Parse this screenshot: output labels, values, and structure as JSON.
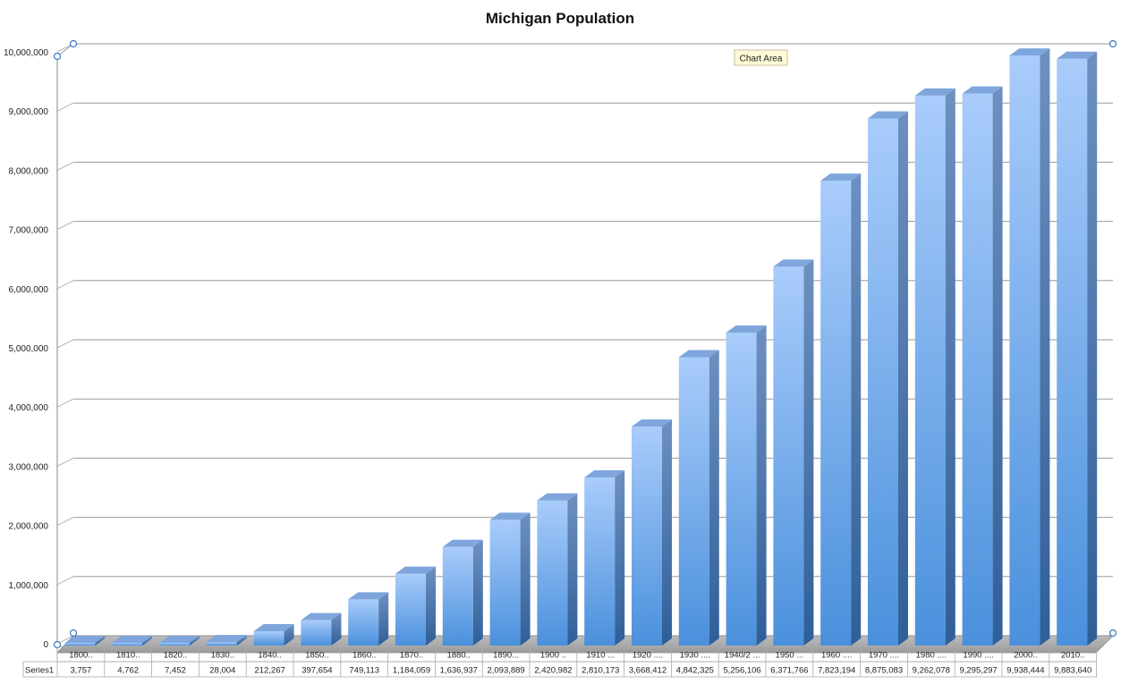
{
  "chart_data": {
    "type": "bar",
    "title": "Michigan Population",
    "xlabel": "",
    "ylabel": "",
    "ylim": [
      0,
      10000000
    ],
    "yticks": [
      "0",
      "1,000,000",
      "2,000,000",
      "3,000,000",
      "4,000,000",
      "5,000,000",
      "6,000,000",
      "7,000,000",
      "8,000,000",
      "9,000,000",
      "10,000,000"
    ],
    "categories": [
      "1800..",
      "1810..",
      "1820..",
      "1830..",
      "1840..",
      "1850..",
      "1860..",
      "1870..",
      "1880..",
      "1890...",
      "1900 ..",
      "1910 ...",
      "1920 ....",
      "1930 ....",
      "1940/2 ...",
      "1950 ...",
      "1960 ....",
      "1970 ....",
      "1980 ....",
      "1990 ....",
      "2000..",
      "2010.."
    ],
    "series": [
      {
        "name": "Series1",
        "values": [
          3757,
          4762,
          7452,
          28004,
          212267,
          397654,
          749113,
          1184059,
          1636937,
          2093889,
          2420982,
          2810173,
          3668412,
          4842325,
          5256106,
          6371766,
          7823194,
          8875083,
          9262078,
          9295297,
          9938444,
          9883640
        ],
        "labels": [
          "3,757",
          "4,762",
          "7,452",
          "28,004",
          "212,267",
          "397,654",
          "749,113",
          "1,184,059",
          "1,636,937",
          "2,093,889",
          "2,420,982",
          "2,810,173",
          "3,668,412",
          "4,842,325",
          "5,256,106",
          "6,371,766",
          "7,823,194",
          "8,875,083",
          "9,262,078",
          "9,295,297",
          "9,938,444",
          "9,883,640"
        ]
      }
    ],
    "grid": true,
    "legend": "data table",
    "bar_color": "#6fa8e8",
    "style": "3d-column"
  },
  "tooltip": {
    "text": "Chart Area"
  }
}
